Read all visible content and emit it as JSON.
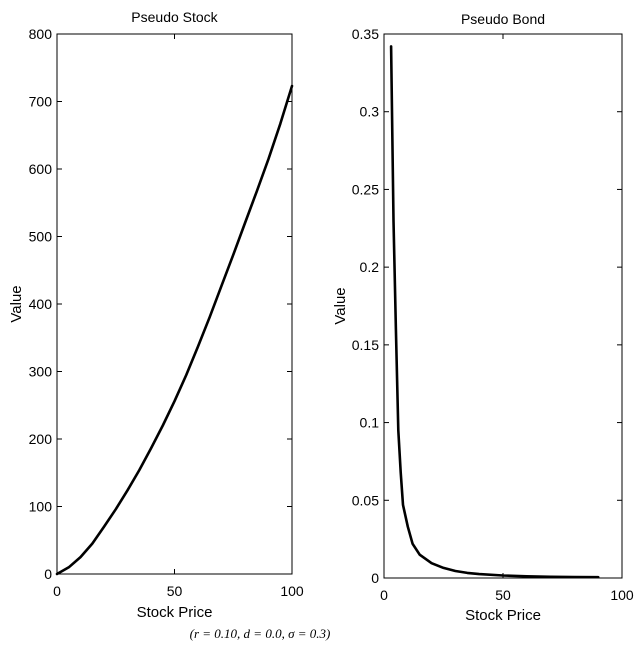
{
  "caption": "(r = 0.10, d = 0.0, σ = 0.3)",
  "chart_data": [
    {
      "type": "line",
      "title": "Pseudo Stock",
      "xlabel": "Stock Price",
      "ylabel": "Value",
      "xlim": [
        0,
        100
      ],
      "ylim": [
        0,
        800
      ],
      "xticks": [
        "0",
        "50",
        "100"
      ],
      "yticks": [
        "0",
        "100",
        "200",
        "300",
        "400",
        "500",
        "600",
        "700",
        "800"
      ],
      "grid": false,
      "series": [
        {
          "x": [
            0,
            5,
            10,
            15,
            20,
            25,
            30,
            35,
            40,
            45,
            50,
            55,
            60,
            65,
            70,
            75,
            80,
            85,
            90,
            95,
            100
          ],
          "y": [
            0,
            10,
            25,
            45,
            70,
            96,
            124,
            154,
            186,
            220,
            256,
            295,
            337,
            381,
            427,
            473,
            520,
            567,
            615,
            667,
            723
          ]
        }
      ]
    },
    {
      "type": "line",
      "title": "Pseudo Bond",
      "xlabel": "Stock Price",
      "ylabel": "Value",
      "xlim": [
        0,
        100
      ],
      "ylim": [
        0,
        0.35
      ],
      "xticks": [
        "0",
        "50",
        "100"
      ],
      "yticks": [
        "0",
        "0.05",
        "0.1",
        "0.15",
        "0.2",
        "0.25",
        "0.3",
        "0.35"
      ],
      "grid": false,
      "series": [
        {
          "x": [
            3,
            4,
            5,
            6,
            7,
            8,
            10,
            12,
            15,
            20,
            25,
            30,
            35,
            40,
            50,
            60,
            70,
            80,
            90
          ],
          "y": [
            0.342,
            0.23,
            0.16,
            0.095,
            0.068,
            0.047,
            0.033,
            0.022,
            0.015,
            0.0095,
            0.0065,
            0.0045,
            0.0033,
            0.0025,
            0.0016,
            0.0011,
            0.0008,
            0.0006,
            0.0005
          ]
        }
      ]
    }
  ]
}
